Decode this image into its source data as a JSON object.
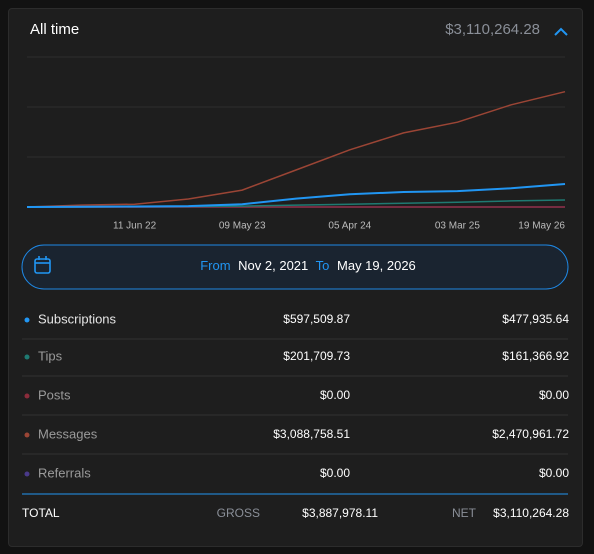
{
  "header": {
    "title": "All time",
    "total": "$3,110,264.28"
  },
  "chart_data": {
    "type": "line",
    "x": [
      null,
      null,
      "11 Jun 22",
      null,
      "09 May 23",
      null,
      "05 Apr 24",
      null,
      "03 Mar 25",
      null,
      "19 May 26"
    ],
    "ylim": [
      0,
      3200000
    ],
    "series": [
      {
        "name": "Subscriptions",
        "color": "#2196f3",
        "values": [
          0,
          5000,
          10000,
          20000,
          60000,
          180000,
          270000,
          320000,
          340000,
          400000,
          490000
        ]
      },
      {
        "name": "Tips",
        "color": "#1f7a72",
        "values": [
          0,
          2000,
          5000,
          10000,
          20000,
          40000,
          60000,
          80000,
          100000,
          130000,
          150000
        ]
      },
      {
        "name": "Posts",
        "color": "#8b2c3b",
        "values": [
          0,
          0,
          0,
          0,
          0,
          0,
          0,
          0,
          0,
          0,
          0
        ]
      },
      {
        "name": "Messages",
        "color": "#9b4535",
        "values": [
          0,
          40000,
          60000,
          170000,
          360000,
          790000,
          1220000,
          1580000,
          1810000,
          2180000,
          2460000
        ]
      },
      {
        "name": "Referrals",
        "color": "#4a3a8a",
        "values": [
          0,
          0,
          0,
          0,
          0,
          0,
          0,
          0,
          0,
          0,
          0
        ]
      }
    ]
  },
  "date_range": {
    "from_label": "From",
    "from": "Nov 2, 2021",
    "to_label": "To",
    "to": "May 19, 2026"
  },
  "table": {
    "rows": [
      {
        "gross": "$597,509.87",
        "net": "$477,935.64"
      },
      {
        "gross": "$201,709.73",
        "net": "$161,366.92"
      },
      {
        "gross": "$0.00",
        "net": "$0.00"
      },
      {
        "gross": "$3,088,758.51",
        "net": "$2,470,961.72"
      },
      {
        "gross": "$0.00",
        "net": "$0.00"
      }
    ],
    "total": {
      "label": "TOTAL",
      "gross_label": "GROSS",
      "gross": "$3,887,978.11",
      "net_label": "NET",
      "net": "$3,110,264.28"
    }
  }
}
